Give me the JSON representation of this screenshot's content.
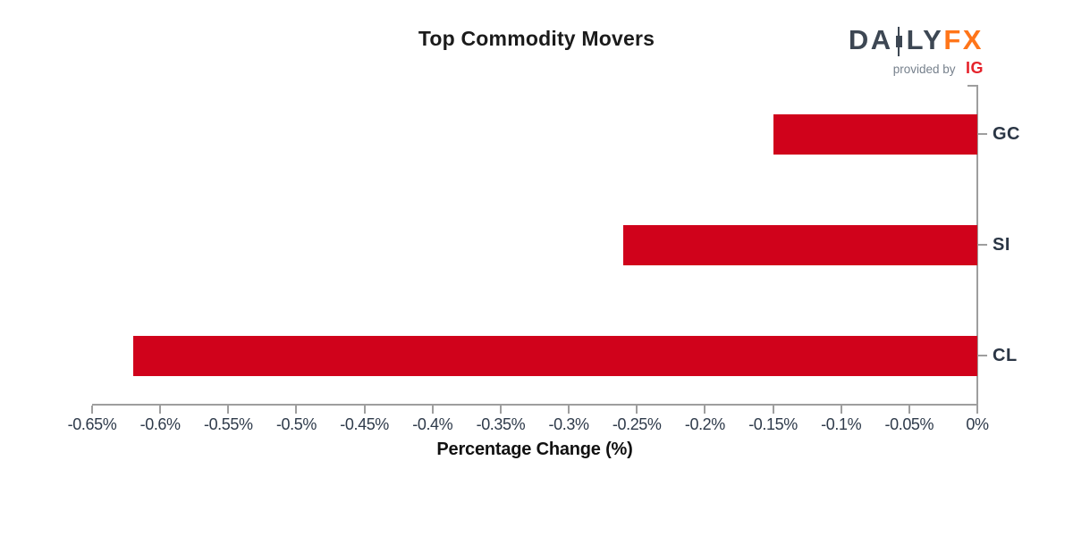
{
  "chart": {
    "title": "Top Commodity Movers",
    "xlabel": "Percentage Change (%)"
  },
  "logo": {
    "text_daily_left": "DA",
    "text_daily_right": "LY",
    "text_fx": "FX",
    "provided_by": "provided by",
    "ig": "IG",
    "slate_color": "#3d4753",
    "fx_orange": "#ff7519",
    "ig_red": "#e5232b"
  },
  "chart_data": {
    "type": "bar",
    "orientation": "horizontal",
    "title": "Top Commodity Movers",
    "xlabel": "Percentage Change (%)",
    "categories": [
      "GC",
      "SI",
      "CL"
    ],
    "values": [
      -0.15,
      -0.26,
      -0.62
    ],
    "unit": "%",
    "xlim": [
      -0.65,
      0
    ],
    "x_tick_labels": [
      "-0.65%",
      "-0.6%",
      "-0.55%",
      "-0.5%",
      "-0.45%",
      "-0.4%",
      "-0.35%",
      "-0.3%",
      "-0.25%",
      "-0.2%",
      "-0.15%",
      "-0.1%",
      "-0.05%",
      "0%"
    ],
    "bar_color": "#d0021b",
    "axis_color": "#9e9e9e",
    "tick_label_color": "#2e3a4a",
    "grid": false,
    "legend_position": "none",
    "bars_anchored_at": 0
  }
}
